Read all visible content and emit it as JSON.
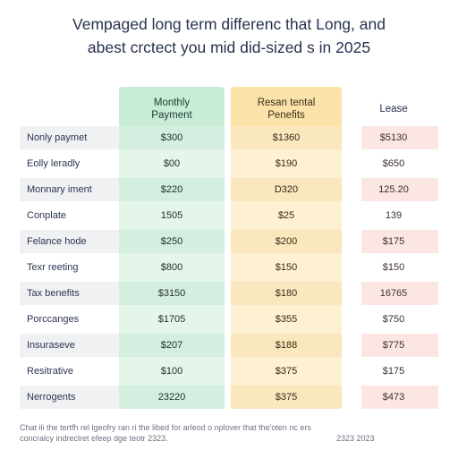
{
  "title": {
    "line1": "Vempaged long term differenc that Long, and",
    "line2": "abest crctect you mid did-sized s in 2025"
  },
  "headers": {
    "monthly_line1": "Monthly",
    "monthly_line2": "Payment",
    "rental_line1": "Resan tental",
    "rental_line2": "Penefits",
    "lease": "Lease"
  },
  "colors": {
    "monthly_column": "#e4f5ea",
    "rental_column": "#fdf0d3",
    "lease_shade": "#fbe6e4"
  },
  "rows": [
    {
      "label": "Nonly paymet",
      "monthly": "$300",
      "rental": "$1360",
      "lease": "$5130"
    },
    {
      "label": "Eolly leradly",
      "monthly": "$00",
      "rental": "$190",
      "lease": "$650"
    },
    {
      "label": "Monnary iment",
      "monthly": "$220",
      "rental": "D320",
      "lease": "125.20"
    },
    {
      "label": "Conplate",
      "monthly": "1505",
      "rental": "$25",
      "lease": "139"
    },
    {
      "label": "Felance hode",
      "monthly": "$250",
      "rental": "$200",
      "lease": "$175"
    },
    {
      "label": "Texr reeting",
      "monthly": "$800",
      "rental": "$150",
      "lease": "$150"
    },
    {
      "label": "Tax benefits",
      "monthly": "$3150",
      "rental": "$180",
      "lease": "16765"
    },
    {
      "label": "Porccanges",
      "monthly": "$1705",
      "rental": "$355",
      "lease": "$750"
    },
    {
      "label": "Insuraseve",
      "monthly": "$207",
      "rental": "$188",
      "lease": "$775"
    },
    {
      "label": "Resitrative",
      "monthly": "$100",
      "rental": "$375",
      "lease": "$175"
    },
    {
      "label": "Nerrogents",
      "monthly": "23220",
      "rental": "$375",
      "lease": "$473"
    }
  ],
  "footnote": {
    "line1": "Chat ili the tertfh rel lgeofry ran ri the libed for arleod o nplover that the'oten nc ers",
    "line2": "concralcy indreclret efeep dge teotr 2323.",
    "line2_right": "2323 2023"
  }
}
